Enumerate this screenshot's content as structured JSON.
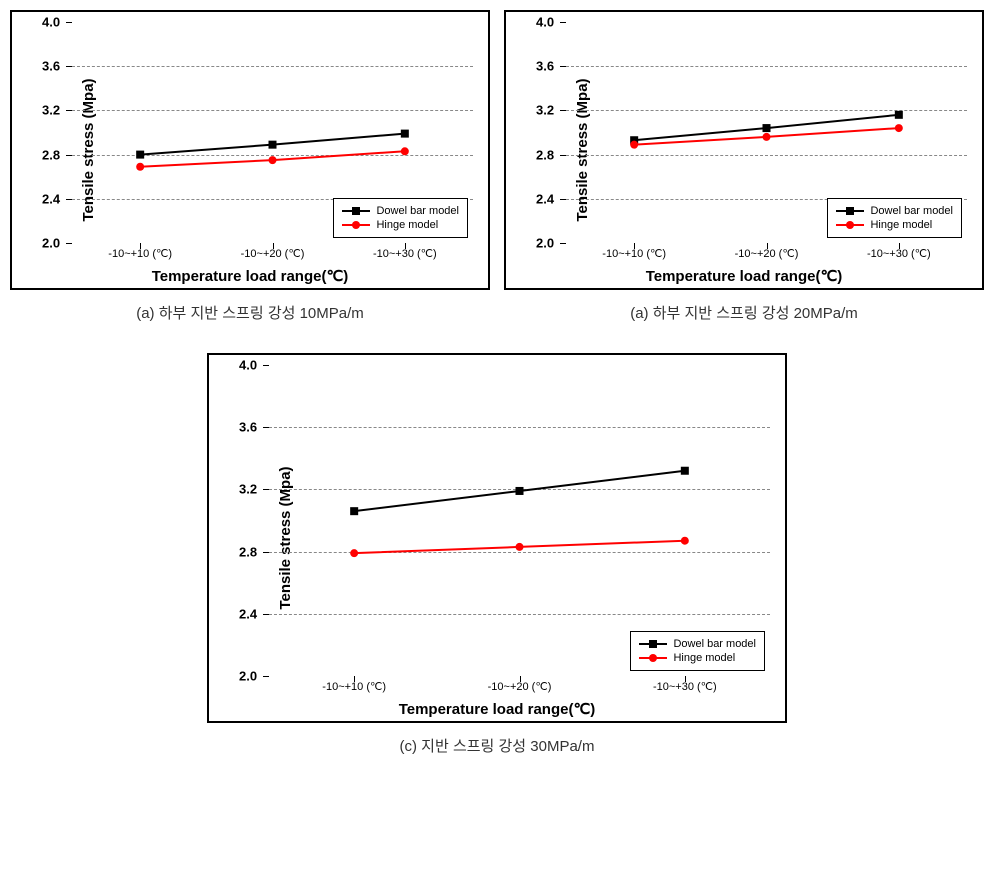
{
  "charts": {
    "chartA": {
      "type": "line",
      "caption": "(a) 하부 지반 스프링 강성 10MPa/m",
      "xlabel": "Temperature load range(℃)",
      "ylabel": "Tensile stress (Mpa)",
      "ylim": [
        2.0,
        4.0
      ],
      "ytick_step": 0.4,
      "yticks": [
        2.0,
        2.4,
        2.8,
        3.2,
        3.6,
        4.0
      ],
      "ytick_labels": [
        "2.0",
        "2.4",
        "2.8",
        "3.2",
        "3.6",
        "4.0"
      ],
      "categories": [
        "-10~+10 (℃)",
        "-10~+20 (℃)",
        "-10~+30 (℃)"
      ],
      "series": [
        {
          "name": "Dowel bar model",
          "color": "#000000",
          "marker": "square",
          "values": [
            2.8,
            2.89,
            2.99
          ]
        },
        {
          "name": "Hinge model",
          "color": "#ff0000",
          "marker": "circle",
          "values": [
            2.69,
            2.75,
            2.83
          ]
        }
      ],
      "grid_color": "#888888",
      "background_color": "#ffffff",
      "border_color": "#000000",
      "line_width": 2,
      "marker_size": 8,
      "ylabel_fontsize": 15,
      "xlabel_fontsize": 15,
      "tick_fontsize": 13
    },
    "chartB": {
      "type": "line",
      "caption": "(a) 하부 지반 스프링 강성 20MPa/m",
      "xlabel": "Temperature load range(℃)",
      "ylabel": "Tensile stress (Mpa)",
      "ylim": [
        2.0,
        4.0
      ],
      "ytick_step": 0.4,
      "yticks": [
        2.0,
        2.4,
        2.8,
        3.2,
        3.6,
        4.0
      ],
      "ytick_labels": [
        "2.0",
        "2.4",
        "2.8",
        "3.2",
        "3.6",
        "4.0"
      ],
      "categories": [
        "-10~+10 (℃)",
        "-10~+20 (℃)",
        "-10~+30 (℃)"
      ],
      "series": [
        {
          "name": "Dowel bar model",
          "color": "#000000",
          "marker": "square",
          "values": [
            2.93,
            3.04,
            3.16
          ]
        },
        {
          "name": "Hinge model",
          "color": "#ff0000",
          "marker": "circle",
          "values": [
            2.89,
            2.96,
            3.04
          ]
        }
      ],
      "grid_color": "#888888",
      "background_color": "#ffffff",
      "border_color": "#000000",
      "line_width": 2,
      "marker_size": 8,
      "ylabel_fontsize": 15,
      "xlabel_fontsize": 15,
      "tick_fontsize": 13
    },
    "chartC": {
      "type": "line",
      "caption": "(c) 지반 스프링 강성 30MPa/m",
      "xlabel": "Temperature load range(℃)",
      "ylabel": "Tensile stress (Mpa)",
      "ylim": [
        2.0,
        4.0
      ],
      "ytick_step": 0.4,
      "yticks": [
        2.0,
        2.4,
        2.8,
        3.2,
        3.6,
        4.0
      ],
      "ytick_labels": [
        "2.0",
        "2.4",
        "2.8",
        "3.2",
        "3.6",
        "4.0"
      ],
      "categories": [
        "-10~+10 (℃)",
        "-10~+20 (℃)",
        "-10~+30 (℃)"
      ],
      "series": [
        {
          "name": "Dowel bar model",
          "color": "#000000",
          "marker": "square",
          "values": [
            3.06,
            3.19,
            3.32
          ]
        },
        {
          "name": "Hinge model",
          "color": "#ff0000",
          "marker": "circle",
          "values": [
            2.79,
            2.83,
            2.87
          ]
        }
      ],
      "grid_color": "#888888",
      "background_color": "#ffffff",
      "border_color": "#000000",
      "line_width": 2,
      "marker_size": 8,
      "ylabel_fontsize": 16,
      "xlabel_fontsize": 16,
      "tick_fontsize": 14
    }
  }
}
